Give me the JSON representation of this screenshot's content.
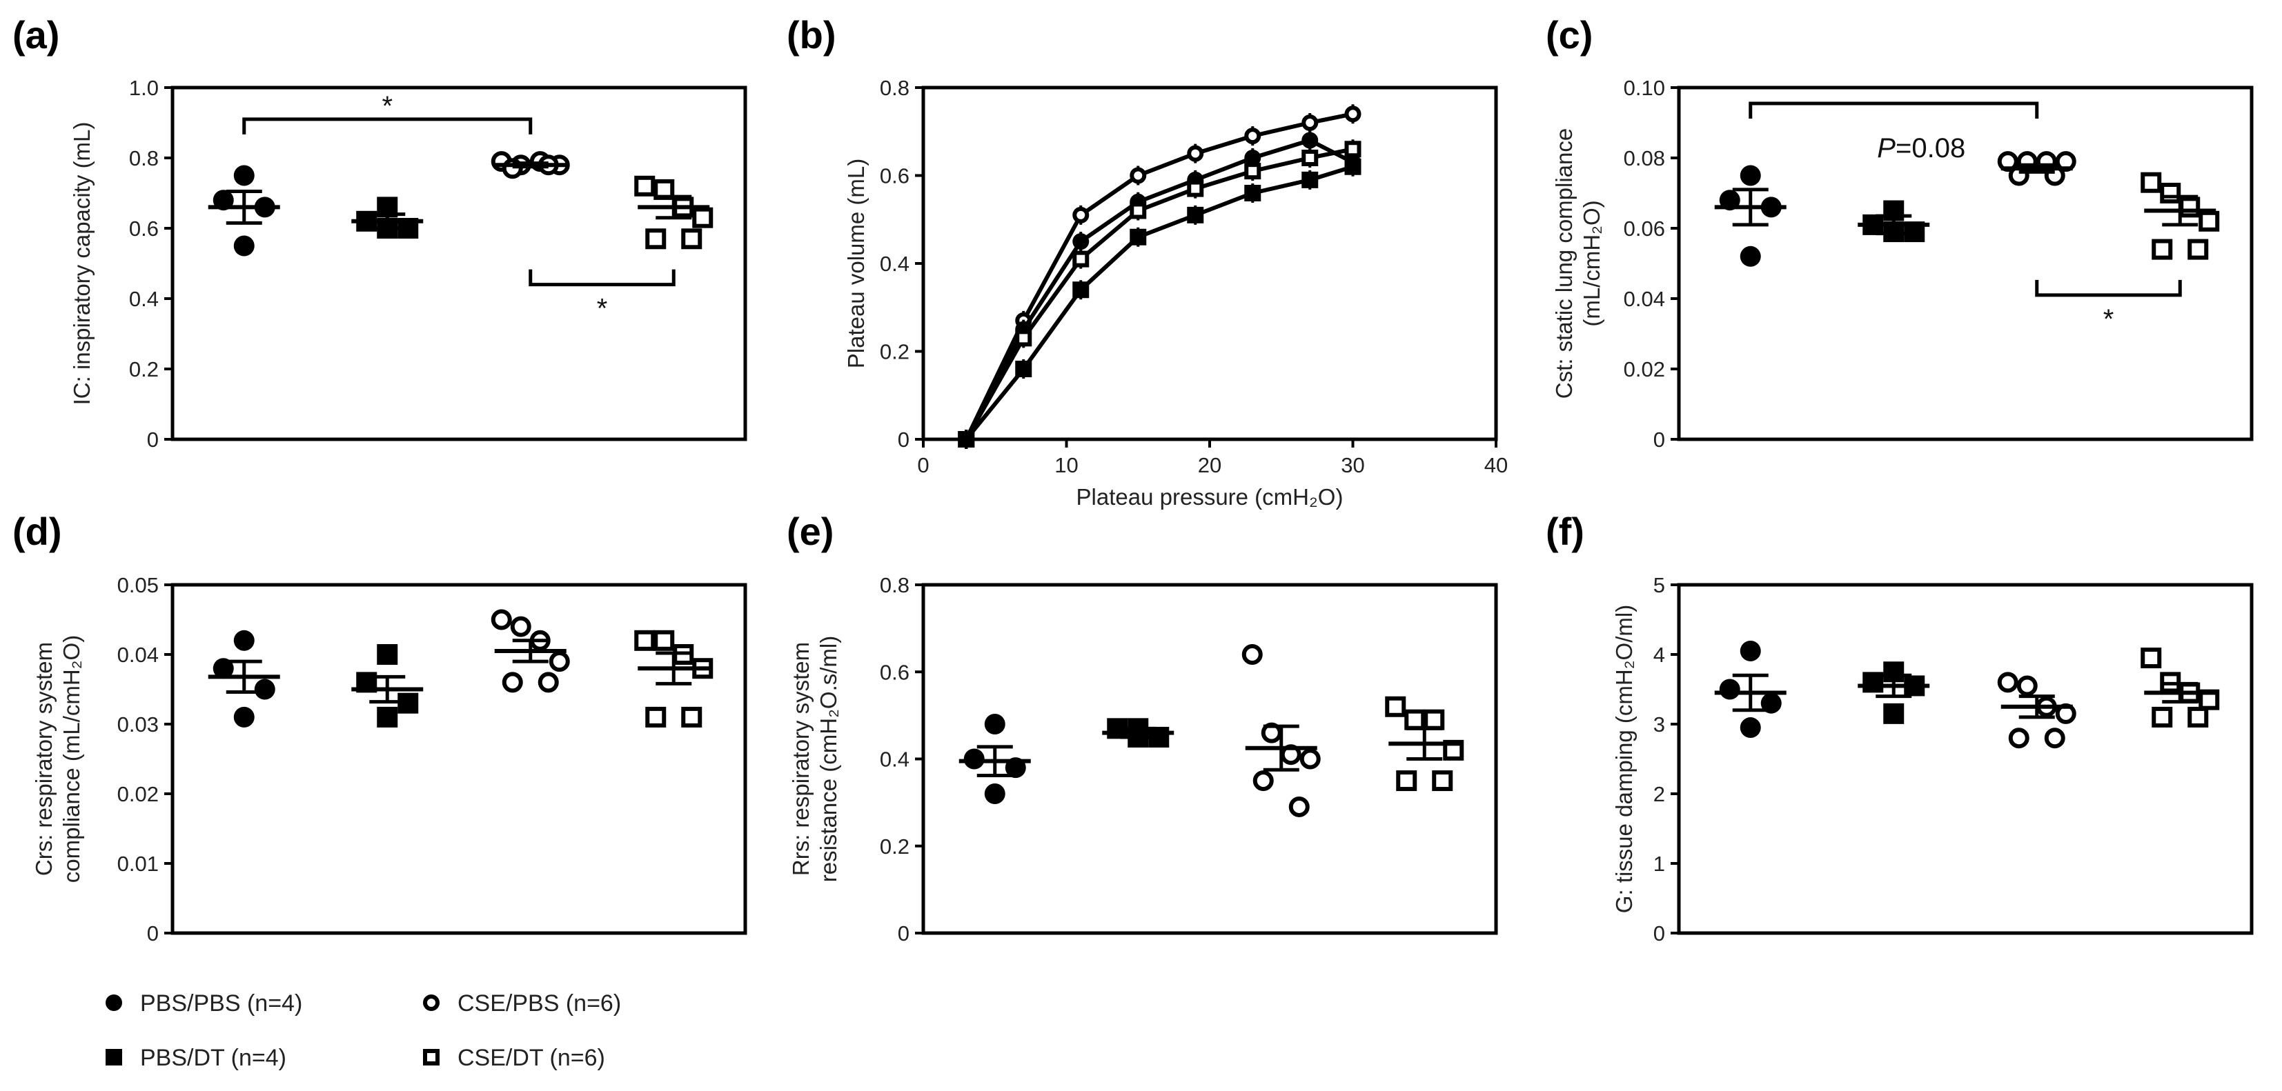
{
  "legend": [
    {
      "label": "PBS/PBS (n=4)",
      "marker": "filled-circle"
    },
    {
      "label": "CSE/PBS (n=6)",
      "marker": "open-circle"
    },
    {
      "label": "PBS/DT (n=4)",
      "marker": "filled-square"
    },
    {
      "label": "CSE/DT (n=6)",
      "marker": "open-square"
    }
  ],
  "chart_data": [
    {
      "id": "a",
      "panel": "(a)",
      "type": "scatter",
      "ylabel": "IC: inspiratory capacity (mL)",
      "ylim": [
        0,
        1.0
      ],
      "yticks": [
        "0",
        "0.2",
        "0.4",
        "0.6",
        "0.8",
        "1.0"
      ],
      "ytick_values": [
        0,
        0.2,
        0.4,
        0.6,
        0.8,
        1.0
      ],
      "groups": [
        {
          "name": "PBS/PBS",
          "marker": "filled-circle",
          "points": [
            0.75,
            0.68,
            0.66,
            0.55
          ],
          "mean": 0.66,
          "sem": 0.045
        },
        {
          "name": "PBS/DT",
          "marker": "filled-square",
          "points": [
            0.66,
            0.62,
            0.6,
            0.6
          ],
          "mean": 0.62,
          "sem": 0.02
        },
        {
          "name": "CSE/PBS",
          "marker": "open-circle",
          "points": [
            0.79,
            0.78,
            0.79,
            0.78,
            0.77,
            0.78
          ],
          "mean": 0.78,
          "sem": 0.005
        },
        {
          "name": "CSE/DT",
          "marker": "open-square",
          "points": [
            0.72,
            0.71,
            0.66,
            0.63,
            0.57,
            0.57
          ],
          "mean": 0.66,
          "sem": 0.03
        }
      ],
      "annotations": [
        {
          "from": 0,
          "to": 2,
          "side": "above",
          "value": 0.91,
          "text": "*"
        },
        {
          "from": 2,
          "to": 3,
          "side": "below",
          "value": 0.44,
          "text": "*"
        }
      ]
    },
    {
      "id": "b",
      "panel": "(b)",
      "type": "line",
      "xlabel": "Plateau pressure (cmH₂O)",
      "ylabel": "Plateau volume (mL)",
      "xlim": [
        0,
        40
      ],
      "ylim": [
        0,
        0.8
      ],
      "xticks": [
        "0",
        "10",
        "20",
        "30",
        "40"
      ],
      "xtick_values": [
        0,
        10,
        20,
        30,
        40
      ],
      "yticks": [
        "0",
        "0.2",
        "0.4",
        "0.6",
        "0.8"
      ],
      "ytick_values": [
        0,
        0.2,
        0.4,
        0.6,
        0.8
      ],
      "x": [
        3,
        7,
        11,
        15,
        19,
        23,
        27,
        30
      ],
      "series": [
        {
          "name": "CSE/PBS",
          "marker": "open-circle",
          "values": [
            0,
            0.27,
            0.51,
            0.6,
            0.65,
            0.69,
            0.72,
            0.74
          ]
        },
        {
          "name": "PBS/PBS",
          "marker": "filled-circle",
          "values": [
            0,
            0.25,
            0.45,
            0.54,
            0.59,
            0.64,
            0.68,
            0.63
          ]
        },
        {
          "name": "CSE/DT",
          "marker": "open-square",
          "values": [
            0,
            0.23,
            0.41,
            0.52,
            0.57,
            0.61,
            0.64,
            0.66
          ]
        },
        {
          "name": "PBS/DT",
          "marker": "filled-square",
          "values": [
            0,
            0.16,
            0.34,
            0.46,
            0.51,
            0.56,
            0.59,
            0.62
          ]
        }
      ]
    },
    {
      "id": "c",
      "panel": "(c)",
      "type": "scatter",
      "ylabel": "Cst: static lung compliance",
      "ylabel2": "(mL/cmH₂O)",
      "ylim": [
        0,
        0.1
      ],
      "yticks": [
        "0",
        "0.02",
        "0.04",
        "0.06",
        "0.08",
        "0.10"
      ],
      "ytick_values": [
        0,
        0.02,
        0.04,
        0.06,
        0.08,
        0.1
      ],
      "groups": [
        {
          "name": "PBS/PBS",
          "marker": "filled-circle",
          "points": [
            0.075,
            0.068,
            0.066,
            0.052
          ],
          "mean": 0.066,
          "sem": 0.005
        },
        {
          "name": "PBS/DT",
          "marker": "filled-square",
          "points": [
            0.065,
            0.061,
            0.059,
            0.059
          ],
          "mean": 0.061,
          "sem": 0.0025
        },
        {
          "name": "CSE/PBS",
          "marker": "open-circle",
          "points": [
            0.079,
            0.079,
            0.079,
            0.079,
            0.075,
            0.075
          ],
          "mean": 0.077,
          "sem": 0.001
        },
        {
          "name": "CSE/DT",
          "marker": "open-square",
          "points": [
            0.073,
            0.07,
            0.066,
            0.062,
            0.054,
            0.054
          ],
          "mean": 0.065,
          "sem": 0.004
        }
      ],
      "annotations": [
        {
          "from": 0,
          "to": 2,
          "side": "above",
          "value": 0.0955,
          "text": "",
          "note_italic": "P",
          "note": "=0.08"
        },
        {
          "from": 2,
          "to": 3,
          "side": "below",
          "value": 0.041,
          "text": "*"
        }
      ]
    },
    {
      "id": "d",
      "panel": "(d)",
      "type": "scatter",
      "ylabel": "Crs: respiratory system",
      "ylabel2": "compliance (mL/cmH₂O)",
      "ylim": [
        0,
        0.05
      ],
      "yticks": [
        "0",
        "0.01",
        "0.02",
        "0.03",
        "0.04",
        "0.05"
      ],
      "ytick_values": [
        0,
        0.01,
        0.02,
        0.03,
        0.04,
        0.05
      ],
      "groups": [
        {
          "name": "PBS/PBS",
          "marker": "filled-circle",
          "points": [
            0.042,
            0.038,
            0.035,
            0.031
          ],
          "mean": 0.0368,
          "sem": 0.0022
        },
        {
          "name": "PBS/DT",
          "marker": "filled-square",
          "points": [
            0.04,
            0.036,
            0.033,
            0.031
          ],
          "mean": 0.035,
          "sem": 0.0018
        },
        {
          "name": "CSE/PBS",
          "marker": "open-circle",
          "points": [
            0.045,
            0.044,
            0.042,
            0.039,
            0.036,
            0.036
          ],
          "mean": 0.0405,
          "sem": 0.0015
        },
        {
          "name": "CSE/DT",
          "marker": "open-square",
          "points": [
            0.042,
            0.042,
            0.04,
            0.038,
            0.031,
            0.031
          ],
          "mean": 0.038,
          "sem": 0.0022
        }
      ]
    },
    {
      "id": "e",
      "panel": "(e)",
      "type": "scatter",
      "ylabel": "Rrs: respiratory system",
      "ylabel2": "resistance (cmH₂O.s/ml)",
      "ylim": [
        0,
        0.8
      ],
      "yticks": [
        "0",
        "0.2",
        "0.4",
        "0.6",
        "0.8"
      ],
      "ytick_values": [
        0,
        0.2,
        0.4,
        0.6,
        0.8
      ],
      "groups": [
        {
          "name": "PBS/PBS",
          "marker": "filled-circle",
          "points": [
            0.48,
            0.4,
            0.38,
            0.32
          ],
          "mean": 0.395,
          "sem": 0.033
        },
        {
          "name": "PBS/DT",
          "marker": "filled-square",
          "points": [
            0.47,
            0.47,
            0.45,
            0.45
          ],
          "mean": 0.46,
          "sem": 0.01
        },
        {
          "name": "CSE/PBS",
          "marker": "open-circle",
          "points": [
            0.64,
            0.46,
            0.41,
            0.4,
            0.35,
            0.29
          ],
          "mean": 0.425,
          "sem": 0.05
        },
        {
          "name": "CSE/DT",
          "marker": "open-square",
          "points": [
            0.52,
            0.49,
            0.49,
            0.42,
            0.35,
            0.35
          ],
          "mean": 0.435,
          "sem": 0.035
        }
      ]
    },
    {
      "id": "f",
      "panel": "(f)",
      "type": "scatter",
      "ylabel": "G: tissue damping (cmH₂O/ml)",
      "ylim": [
        0,
        5
      ],
      "yticks": [
        "0",
        "1",
        "2",
        "3",
        "4",
        "5"
      ],
      "ytick_values": [
        0,
        1,
        2,
        3,
        4,
        5
      ],
      "groups": [
        {
          "name": "PBS/PBS",
          "marker": "filled-circle",
          "points": [
            4.05,
            3.5,
            3.3,
            2.95
          ],
          "mean": 3.45,
          "sem": 0.25
        },
        {
          "name": "PBS/DT",
          "marker": "filled-square",
          "points": [
            3.75,
            3.6,
            3.55,
            3.15
          ],
          "mean": 3.55,
          "sem": 0.15
        },
        {
          "name": "CSE/PBS",
          "marker": "open-circle",
          "points": [
            3.6,
            3.55,
            3.25,
            3.15,
            2.8,
            2.8
          ],
          "mean": 3.25,
          "sem": 0.15
        },
        {
          "name": "CSE/DT",
          "marker": "open-square",
          "points": [
            3.95,
            3.6,
            3.45,
            3.35,
            3.1,
            3.1
          ],
          "mean": 3.45,
          "sem": 0.13
        }
      ]
    }
  ]
}
